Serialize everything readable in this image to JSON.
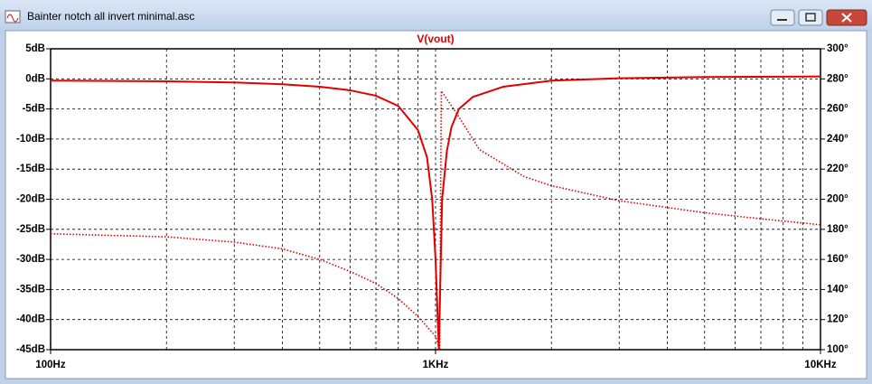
{
  "window": {
    "title": "Bainter notch all invert minimal.asc"
  },
  "chart_data": {
    "type": "line",
    "title": "V(vout)",
    "xscale": "log",
    "grid": true,
    "xlim": [
      100,
      10000
    ],
    "xticks": [
      {
        "value": 100,
        "label": "100Hz"
      },
      {
        "value": 1000,
        "label": "1KHz"
      },
      {
        "value": 10000,
        "label": "10KHz"
      }
    ],
    "ylim": [
      -45,
      5
    ],
    "yticks": [
      {
        "value": 5,
        "label": "5dB"
      },
      {
        "value": 0,
        "label": "0dB"
      },
      {
        "value": -5,
        "label": "-5dB"
      },
      {
        "value": -10,
        "label": "-10dB"
      },
      {
        "value": -15,
        "label": "-15dB"
      },
      {
        "value": -20,
        "label": "-20dB"
      },
      {
        "value": -25,
        "label": "-25dB"
      },
      {
        "value": -30,
        "label": "-30dB"
      },
      {
        "value": -35,
        "label": "-35dB"
      },
      {
        "value": -40,
        "label": "-40dB"
      },
      {
        "value": -45,
        "label": "-45dB"
      }
    ],
    "y2lim": [
      100,
      300
    ],
    "y2ticks": [
      {
        "value": 300,
        "label": "300°"
      },
      {
        "value": 280,
        "label": "280°"
      },
      {
        "value": 260,
        "label": "260°"
      },
      {
        "value": 240,
        "label": "240°"
      },
      {
        "value": 220,
        "label": "220°"
      },
      {
        "value": 200,
        "label": "200°"
      },
      {
        "value": 180,
        "label": "180°"
      },
      {
        "value": 160,
        "label": "160°"
      },
      {
        "value": 140,
        "label": "140°"
      },
      {
        "value": 120,
        "label": "120°"
      },
      {
        "value": 100,
        "label": "100°"
      }
    ],
    "series": [
      {
        "color": "#e00000",
        "style": "solid",
        "x": [
          100,
          200,
          300,
          400,
          500,
          600,
          700,
          800,
          900,
          950,
          980,
          1000,
          1020,
          1040,
          1070,
          1100,
          1150,
          1250,
          1500,
          2000,
          3000,
          5000,
          10000
        ],
        "values": [
          -0.3,
          -0.4,
          -0.6,
          -0.9,
          -1.3,
          -1.9,
          -2.8,
          -4.5,
          -8.5,
          -13,
          -20,
          -30,
          -45,
          -20,
          -12,
          -8,
          -5,
          -3,
          -1.3,
          -0.3,
          0.1,
          0.3,
          0.4
        ]
      },
      {
        "color": "#e00000",
        "style": "dotted",
        "axis": "y2",
        "x": [
          100,
          200,
          300,
          400,
          500,
          600,
          700,
          800,
          900,
          1000,
          1025,
          1035,
          1135,
          1300,
          1700,
          2000,
          3000,
          5000,
          7000,
          10000
        ],
        "values": [
          177,
          175,
          171.5,
          167,
          160,
          152,
          144,
          134,
          122,
          109,
          100,
          272,
          257,
          233,
          215,
          209,
          199,
          191,
          187,
          183
        ]
      }
    ]
  }
}
